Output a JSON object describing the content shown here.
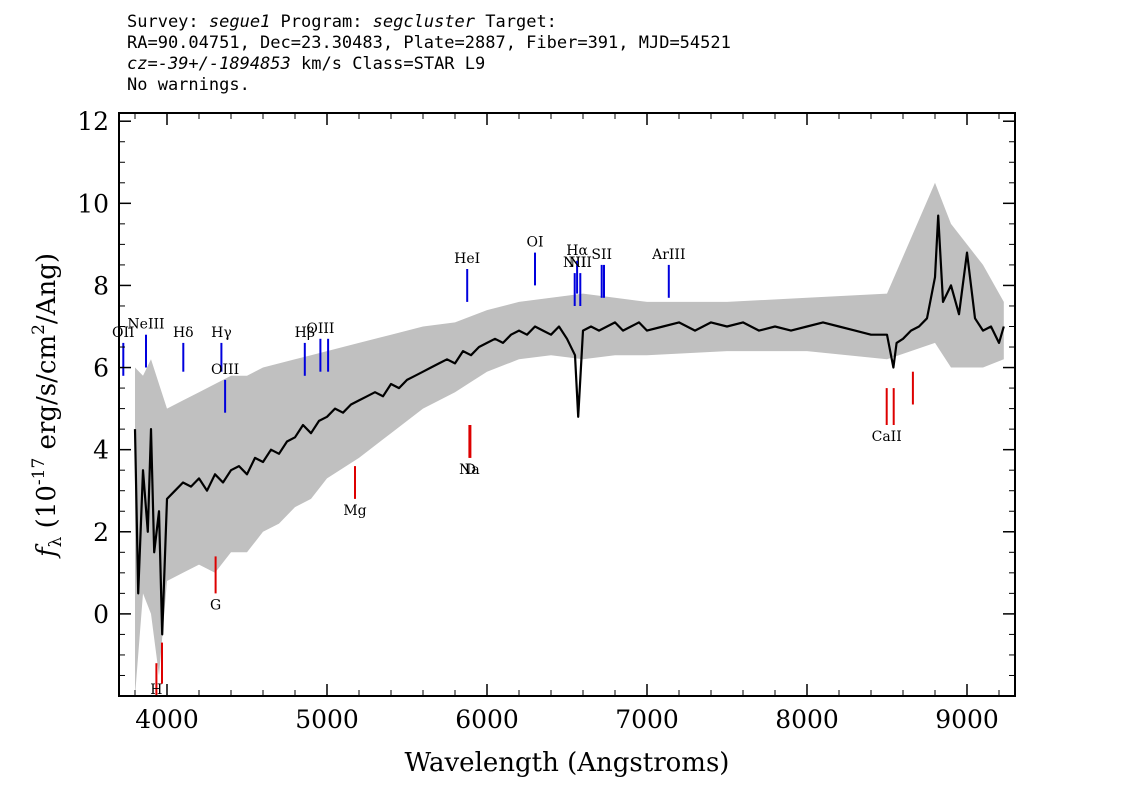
{
  "header": {
    "line1": {
      "survey_label": "Survey: ",
      "survey": "segue1",
      "program_label": " Program: ",
      "program": "segcluster",
      "target_label": " Target:"
    },
    "line2": "RA=90.04751, Dec=23.30483, Plate=2887, Fiber=391, MJD=54521",
    "line3": {
      "cz_label": "cz=",
      "cz_value": "-39+/-1894853",
      "cz_unit": " km/s Class=STAR L9"
    },
    "line4": "No warnings."
  },
  "colors": {
    "flux": "#000000",
    "error": "#c0c0c0",
    "emission": "#0000dd",
    "absorption": "#dd0000"
  },
  "chart_data": {
    "type": "line",
    "xlabel": "Wavelength (Angstroms)",
    "ylabel": "f_λ (10^-17 erg/s/cm^2/Ang)",
    "xlim": [
      3700,
      9300
    ],
    "ylim": [
      -2,
      12.2
    ],
    "xticks": [
      {
        "value": 4000,
        "label": "4000"
      },
      {
        "value": 5000,
        "label": "5000"
      },
      {
        "value": 6000,
        "label": "6000"
      },
      {
        "value": 7000,
        "label": "7000"
      },
      {
        "value": 8000,
        "label": "8000"
      },
      {
        "value": 9000,
        "label": "9000"
      }
    ],
    "yticks": [
      {
        "value": 0,
        "label": "0"
      },
      {
        "value": 2,
        "label": "2"
      },
      {
        "value": 4,
        "label": "4"
      },
      {
        "value": 6,
        "label": "6"
      },
      {
        "value": 8,
        "label": "8"
      },
      {
        "value": 10,
        "label": "10"
      },
      {
        "value": 12,
        "label": "12"
      }
    ],
    "series": [
      {
        "role": "flux",
        "x": [
          3800,
          3820,
          3850,
          3880,
          3900,
          3920,
          3950,
          3970,
          4000,
          4050,
          4100,
          4150,
          4200,
          4250,
          4300,
          4350,
          4400,
          4450,
          4500,
          4550,
          4600,
          4650,
          4700,
          4750,
          4800,
          4850,
          4900,
          4950,
          5000,
          5050,
          5100,
          5150,
          5200,
          5250,
          5300,
          5350,
          5400,
          5450,
          5500,
          5550,
          5600,
          5650,
          5700,
          5750,
          5800,
          5850,
          5900,
          5950,
          6000,
          6050,
          6100,
          6150,
          6200,
          6250,
          6300,
          6350,
          6400,
          6450,
          6500,
          6550,
          6570,
          6600,
          6650,
          6700,
          6750,
          6800,
          6850,
          6900,
          6950,
          7000,
          7100,
          7200,
          7300,
          7400,
          7500,
          7600,
          7700,
          7800,
          7900,
          8000,
          8100,
          8200,
          8300,
          8400,
          8500,
          8540,
          8560,
          8600,
          8650,
          8700,
          8750,
          8800,
          8820,
          8850,
          8900,
          8950,
          9000,
          9050,
          9100,
          9150,
          9200,
          9230
        ],
        "y": [
          4.5,
          0.5,
          3.5,
          2.0,
          4.5,
          1.5,
          2.5,
          -0.5,
          2.8,
          3.0,
          3.2,
          3.1,
          3.3,
          3.0,
          3.4,
          3.2,
          3.5,
          3.6,
          3.4,
          3.8,
          3.7,
          4.0,
          3.9,
          4.2,
          4.3,
          4.6,
          4.4,
          4.7,
          4.8,
          5.0,
          4.9,
          5.1,
          5.2,
          5.3,
          5.4,
          5.3,
          5.6,
          5.5,
          5.7,
          5.8,
          5.9,
          6.0,
          6.1,
          6.2,
          6.1,
          6.4,
          6.3,
          6.5,
          6.6,
          6.7,
          6.6,
          6.8,
          6.9,
          6.8,
          7.0,
          6.9,
          6.8,
          7.0,
          6.7,
          6.3,
          4.8,
          6.9,
          7.0,
          6.9,
          7.0,
          7.1,
          6.9,
          7.0,
          7.1,
          6.9,
          7.0,
          7.1,
          6.9,
          7.1,
          7.0,
          7.1,
          6.9,
          7.0,
          6.9,
          7.0,
          7.1,
          7.0,
          6.9,
          6.8,
          6.8,
          6.0,
          6.6,
          6.7,
          6.9,
          7.0,
          7.2,
          8.2,
          9.7,
          7.6,
          8.0,
          7.3,
          8.8,
          7.2,
          6.9,
          7.0,
          6.6,
          7.0
        ]
      },
      {
        "role": "error",
        "x": [
          3800,
          3850,
          3900,
          3950,
          4000,
          4100,
          4200,
          4300,
          4400,
          4500,
          4600,
          4700,
          4800,
          4900,
          5000,
          5200,
          5400,
          5600,
          5800,
          6000,
          6200,
          6400,
          6600,
          6800,
          7000,
          7500,
          8000,
          8500,
          8800,
          8900,
          9000,
          9100,
          9230
        ],
        "upper": [
          6.0,
          5.8,
          6.2,
          5.6,
          5.0,
          5.2,
          5.4,
          5.6,
          5.8,
          5.8,
          6.0,
          6.1,
          6.2,
          6.3,
          6.4,
          6.6,
          6.8,
          7.0,
          7.1,
          7.4,
          7.6,
          7.7,
          7.8,
          7.7,
          7.6,
          7.6,
          7.7,
          7.8,
          10.5,
          9.5,
          9.0,
          8.5,
          7.6
        ],
        "lower": [
          -2.0,
          0.5,
          0.0,
          -1.5,
          0.8,
          1.0,
          1.2,
          1.0,
          1.5,
          1.5,
          2.0,
          2.2,
          2.6,
          2.8,
          3.3,
          3.8,
          4.4,
          5.0,
          5.4,
          5.9,
          6.2,
          6.3,
          6.2,
          6.3,
          6.3,
          6.4,
          6.4,
          6.2,
          6.6,
          6.0,
          6.0,
          6.0,
          6.2
        ]
      }
    ],
    "emission_lines": [
      {
        "label": "OII",
        "x": 3727,
        "y1": 5.8,
        "y2": 6.6
      },
      {
        "label": "NeIII",
        "x": 3869,
        "y1": 6.0,
        "y2": 6.8
      },
      {
        "label": "Hδ",
        "x": 4102,
        "y1": 5.9,
        "y2": 6.6
      },
      {
        "label": "Hγ",
        "x": 4340,
        "y1": 5.9,
        "y2": 6.6
      },
      {
        "label": "OIII",
        "x": 4363,
        "y1": 4.9,
        "y2": 5.7
      },
      {
        "label": "Hβ",
        "x": 4861,
        "y1": 5.8,
        "y2": 6.6
      },
      {
        "label": "OIII",
        "x": 4959,
        "y1": 5.9,
        "y2": 6.7
      },
      {
        "label": "",
        "x": 5007,
        "y1": 5.9,
        "y2": 6.7
      },
      {
        "label": "HeI",
        "x": 5876,
        "y1": 7.6,
        "y2": 8.4
      },
      {
        "label": "OI",
        "x": 6300,
        "y1": 8.0,
        "y2": 8.8
      },
      {
        "label": "NII",
        "x": 6548,
        "y1": 7.5,
        "y2": 8.3
      },
      {
        "label": "Hα",
        "x": 6563,
        "y1": 7.8,
        "y2": 8.6
      },
      {
        "label": "NII",
        "x": 6583,
        "y1": 7.5,
        "y2": 8.3
      },
      {
        "label": "SII",
        "x": 6717,
        "y1": 7.7,
        "y2": 8.5
      },
      {
        "label": "",
        "x": 6731,
        "y1": 7.7,
        "y2": 8.5
      },
      {
        "label": "ArIII",
        "x": 7136,
        "y1": 7.7,
        "y2": 8.5
      }
    ],
    "absorption_lines": [
      {
        "label": "H",
        "x": 3934,
        "y1": -2.0,
        "y2": -1.2
      },
      {
        "label": "",
        "x": 3969,
        "y1": -1.7,
        "y2": -0.7
      },
      {
        "label": "G",
        "x": 4304,
        "y1": 0.5,
        "y2": 1.4
      },
      {
        "label": "Mg",
        "x": 5175,
        "y1": 2.8,
        "y2": 3.6
      },
      {
        "label": "Na",
        "x": 5890,
        "y1": 3.8,
        "y2": 4.6
      },
      {
        "label": "D",
        "x": 5896,
        "y1": 3.8,
        "y2": 4.6
      },
      {
        "label": "CaII",
        "x": 8498,
        "y1": 4.6,
        "y2": 5.5
      },
      {
        "label": "",
        "x": 8542,
        "y1": 4.6,
        "y2": 5.5
      },
      {
        "label": "",
        "x": 8662,
        "y1": 5.1,
        "y2": 5.9
      }
    ]
  }
}
